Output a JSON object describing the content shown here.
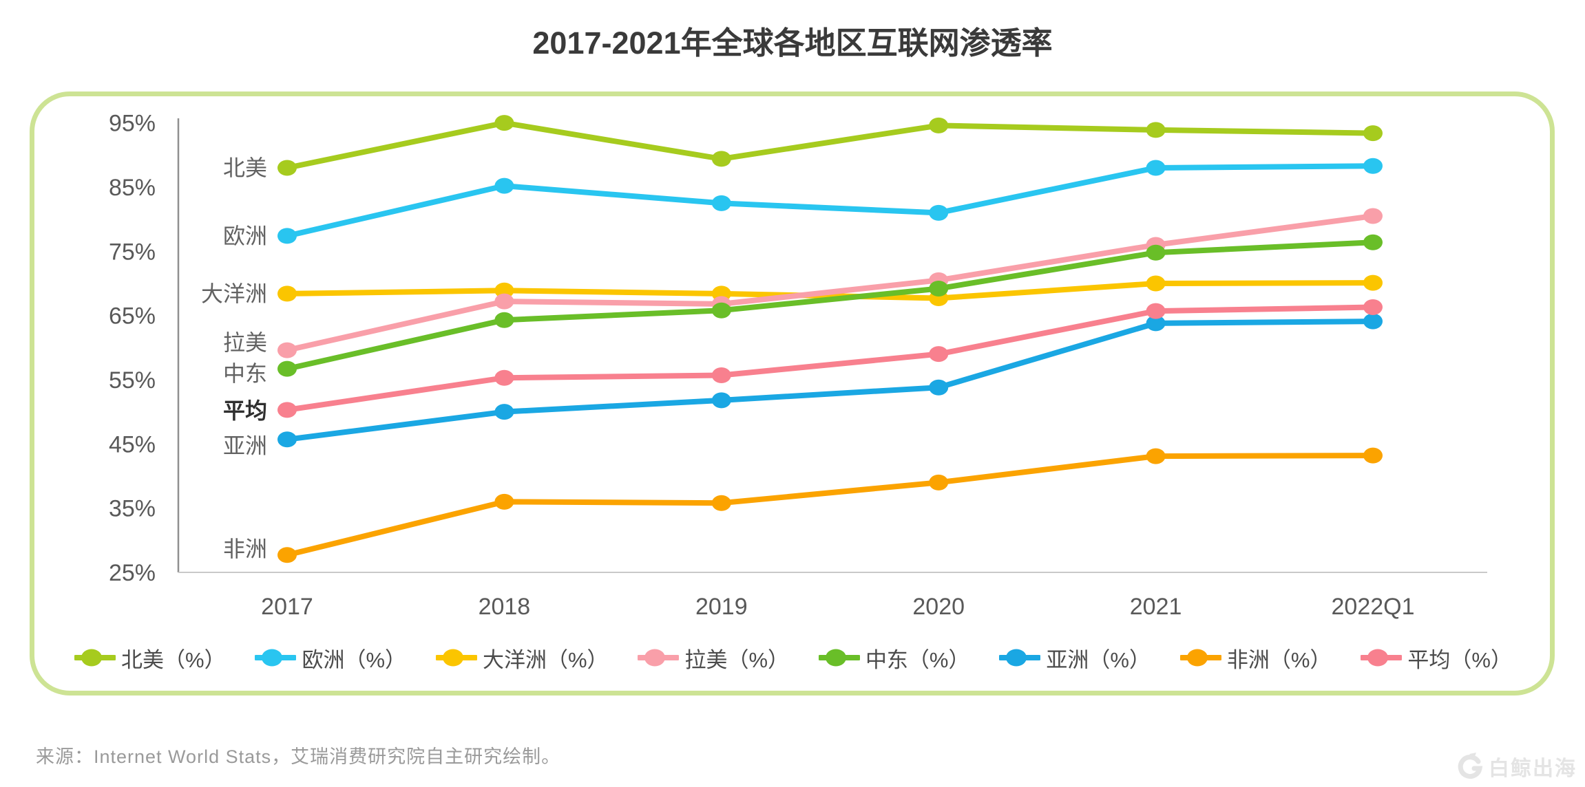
{
  "page": {
    "background": "#ffffff"
  },
  "header": {
    "title": "2017-2021年全球各地区互联网渗透率"
  },
  "chart_data": {
    "type": "line",
    "title": "2017-2021年全球各地区互联网渗透率",
    "x_categories": [
      "2017",
      "2018",
      "2019",
      "2020",
      "2021",
      "2022Q1"
    ],
    "y_tick_labels": [
      "95%",
      "85%",
      "75%",
      "65%",
      "55%",
      "45%",
      "35%",
      "25%"
    ],
    "y_tick_values": [
      95,
      85,
      75,
      65,
      55,
      45,
      35,
      25
    ],
    "ylim": [
      25,
      95
    ],
    "y_unit": "%",
    "grid": false,
    "legend_position": "bottom",
    "series": [
      {
        "key": "north_america",
        "name": "北美",
        "legend_label": "北美（%）",
        "color": "#a6cb1e",
        "values": [
          88,
          95,
          89.4,
          94.6,
          93.9,
          93.4
        ],
        "label_dy": 0,
        "label_bold": false
      },
      {
        "key": "europe",
        "name": "欧洲",
        "legend_label": "欧洲（%）",
        "color": "#29c5f0",
        "values": [
          77.4,
          85.2,
          82.5,
          81,
          88,
          88.3
        ],
        "label_dy": 0,
        "label_bold": false
      },
      {
        "key": "oceania",
        "name": "大洋洲",
        "legend_label": "大洋洲（%）",
        "color": "#fbc500",
        "values": [
          68.4,
          68.9,
          68.4,
          67.7,
          70,
          70.1
        ],
        "label_dy": 0,
        "label_bold": false
      },
      {
        "key": "latin_america",
        "name": "拉美",
        "legend_label": "拉美（%）",
        "color": "#f99fa9",
        "values": [
          59.6,
          67.2,
          66.8,
          70.5,
          76,
          80.5
        ],
        "label_dy": -11,
        "label_bold": false
      },
      {
        "key": "middle_east",
        "name": "中东",
        "legend_label": "中东（%）",
        "color": "#69be28",
        "values": [
          56.7,
          64.3,
          65.8,
          69.2,
          74.8,
          76.4
        ],
        "label_dy": 7,
        "label_bold": false
      },
      {
        "key": "asia",
        "name": "亚洲",
        "legend_label": "亚洲（%）",
        "color": "#1aa7e3",
        "values": [
          45.7,
          50,
          51.8,
          53.8,
          63.8,
          64.1
        ],
        "label_dy": 9,
        "label_bold": false
      },
      {
        "key": "africa",
        "name": "非洲",
        "legend_label": "非洲（%）",
        "color": "#fba300",
        "values": [
          27.7,
          36,
          35.8,
          39,
          43.1,
          43.2
        ],
        "label_dy": -9,
        "label_bold": false
      },
      {
        "key": "average",
        "name": "平均",
        "legend_label": "平均（%）",
        "color": "#f8808e",
        "values": [
          50.3,
          55.3,
          55.7,
          59,
          65.7,
          66.3
        ],
        "label_dy": 1,
        "label_bold": true
      }
    ],
    "axis_colors": {
      "y_axis": "#8f8f8f",
      "x_axis": "#c9c9c9",
      "tick_text": "#595959"
    }
  },
  "footer": {
    "source_text": "来源：Internet World Stats，艾瑞消费研究院自主研究绘制。"
  },
  "watermark": {
    "text": "白鲸出海"
  }
}
